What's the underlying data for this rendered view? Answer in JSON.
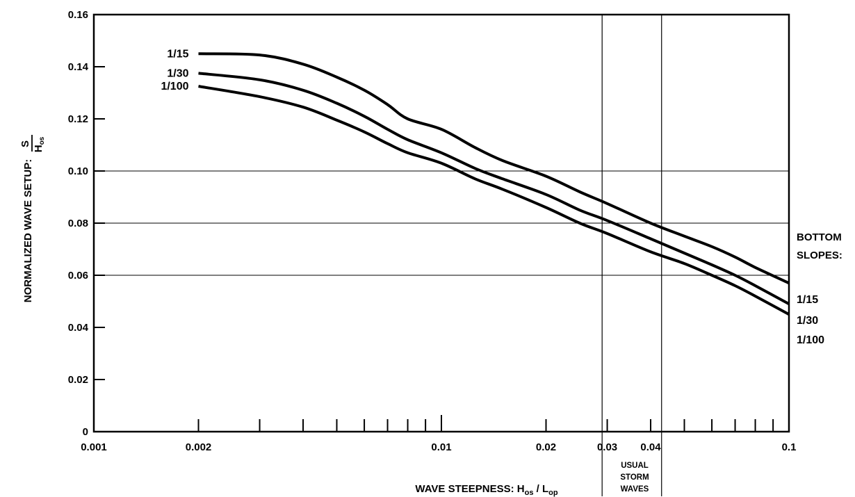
{
  "chart_data": {
    "type": "line",
    "x_scale": "log",
    "xlim": [
      0.001,
      0.1
    ],
    "ylim": [
      0,
      0.16
    ],
    "grid": "horizontal lines at 0.06, 0.08, 0.10",
    "xlabel": {
      "main": "WAVE STEEPNESS: H",
      "sub1": "os",
      "mid": " / L",
      "sub2": "op"
    },
    "ylabel": {
      "main": "NORMALIZED WAVE SETUP: ",
      "num": "S",
      "den_main": "H",
      "den_sub": "os"
    },
    "x_tick_labels": [
      {
        "value": 0.001,
        "label": "0.001"
      },
      {
        "value": 0.002,
        "label": "0.002"
      },
      {
        "value": 0.01,
        "label": "0.01"
      },
      {
        "value": 0.02,
        "label": "0.02"
      },
      {
        "value": 0.03,
        "label": "0.03"
      },
      {
        "value": 0.04,
        "label": "0.04"
      },
      {
        "value": 0.1,
        "label": "0.1"
      }
    ],
    "x_minor_ticks": [
      0.002,
      0.003,
      0.004,
      0.005,
      0.006,
      0.007,
      0.008,
      0.009,
      0.02,
      0.03,
      0.04,
      0.05,
      0.06,
      0.07,
      0.08,
      0.09
    ],
    "y_tick_labels": [
      {
        "value": 0,
        "label": "0"
      },
      {
        "value": 0.02,
        "label": "0.02"
      },
      {
        "value": 0.04,
        "label": "0.04"
      },
      {
        "value": 0.06,
        "label": "0.06"
      },
      {
        "value": 0.08,
        "label": "0.08"
      },
      {
        "value": 0.1,
        "label": "0.10"
      },
      {
        "value": 0.12,
        "label": "0.12"
      },
      {
        "value": 0.14,
        "label": "0.14"
      },
      {
        "value": 0.16,
        "label": "0.16"
      }
    ],
    "series": [
      {
        "name": "1/15",
        "points": [
          [
            0.002,
            0.145
          ],
          [
            0.003,
            0.1445
          ],
          [
            0.004,
            0.141
          ],
          [
            0.005,
            0.136
          ],
          [
            0.006,
            0.131
          ],
          [
            0.007,
            0.1255
          ],
          [
            0.008,
            0.12
          ],
          [
            0.01,
            0.116
          ],
          [
            0.0125,
            0.109
          ],
          [
            0.015,
            0.104
          ],
          [
            0.02,
            0.098
          ],
          [
            0.025,
            0.092
          ],
          [
            0.03,
            0.0875
          ],
          [
            0.04,
            0.08
          ],
          [
            0.05,
            0.075
          ],
          [
            0.06,
            0.071
          ],
          [
            0.07,
            0.067
          ],
          [
            0.08,
            0.063
          ],
          [
            0.1,
            0.057
          ]
        ]
      },
      {
        "name": "1/30",
        "points": [
          [
            0.002,
            0.1375
          ],
          [
            0.003,
            0.135
          ],
          [
            0.004,
            0.131
          ],
          [
            0.005,
            0.126
          ],
          [
            0.006,
            0.121
          ],
          [
            0.007,
            0.116
          ],
          [
            0.008,
            0.112
          ],
          [
            0.01,
            0.107
          ],
          [
            0.0125,
            0.101
          ],
          [
            0.015,
            0.097
          ],
          [
            0.02,
            0.091
          ],
          [
            0.025,
            0.085
          ],
          [
            0.03,
            0.081
          ],
          [
            0.04,
            0.074
          ],
          [
            0.05,
            0.0685
          ],
          [
            0.06,
            0.064
          ],
          [
            0.07,
            0.06
          ],
          [
            0.08,
            0.056
          ],
          [
            0.1,
            0.049
          ]
        ]
      },
      {
        "name": "1/100",
        "points": [
          [
            0.002,
            0.1325
          ],
          [
            0.003,
            0.1285
          ],
          [
            0.004,
            0.1245
          ],
          [
            0.005,
            0.1195
          ],
          [
            0.006,
            0.115
          ],
          [
            0.007,
            0.1105
          ],
          [
            0.008,
            0.107
          ],
          [
            0.01,
            0.103
          ],
          [
            0.0125,
            0.097
          ],
          [
            0.015,
            0.093
          ],
          [
            0.02,
            0.086
          ],
          [
            0.025,
            0.08
          ],
          [
            0.03,
            0.076
          ],
          [
            0.04,
            0.069
          ],
          [
            0.05,
            0.0645
          ],
          [
            0.06,
            0.06
          ],
          [
            0.07,
            0.056
          ],
          [
            0.08,
            0.052
          ],
          [
            0.1,
            0.045
          ]
        ]
      }
    ],
    "right_legend": {
      "title_line1": "BOTTOM",
      "title_line2": "SLOPES:",
      "items": [
        "1/15",
        "1/30",
        "1/100"
      ]
    },
    "annotation": {
      "lines": [
        "USUAL",
        "STORM",
        "WAVES"
      ],
      "x_range": [
        0.029,
        0.043
      ]
    }
  }
}
